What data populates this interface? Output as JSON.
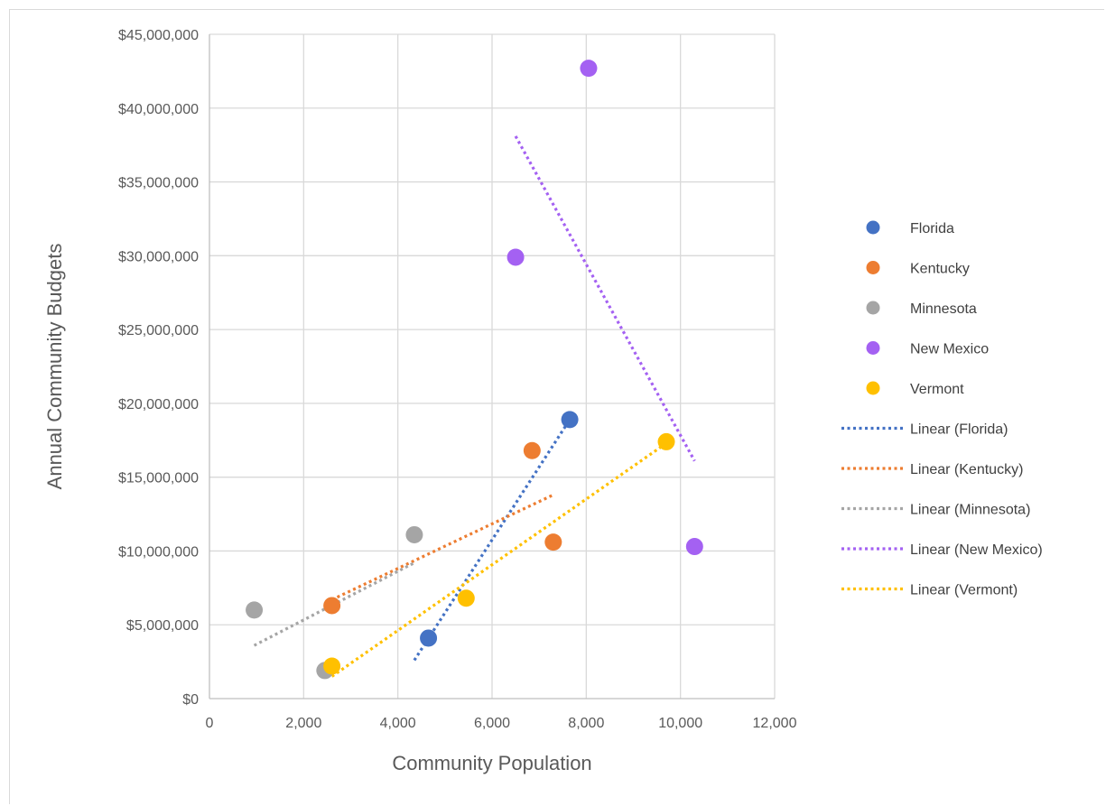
{
  "chart_data": {
    "type": "scatter",
    "title": "",
    "xlabel": "Community Population",
    "ylabel": "Annual Community Budgets",
    "xlim": [
      0,
      12000
    ],
    "ylim": [
      0,
      45000000
    ],
    "xticks": [
      0,
      2000,
      4000,
      6000,
      8000,
      10000,
      12000
    ],
    "xtick_labels": [
      "0",
      "2,000",
      "4,000",
      "6,000",
      "8,000",
      "10,000",
      "12,000"
    ],
    "yticks": [
      0,
      5000000,
      10000000,
      15000000,
      20000000,
      25000000,
      30000000,
      35000000,
      40000000,
      45000000
    ],
    "ytick_labels": [
      "$0",
      "$5,000,000",
      "$10,000,000",
      "$15,000,000",
      "$20,000,000",
      "$25,000,000",
      "$30,000,000",
      "$35,000,000",
      "$40,000,000",
      "$45,000,000"
    ],
    "grid": true,
    "legend_position": "right",
    "series": [
      {
        "name": "Florida",
        "color": "#4472c4",
        "points": [
          [
            4650,
            4100000
          ],
          [
            7650,
            18900000
          ]
        ],
        "trendline": {
          "name": "Linear (Florida)",
          "x": [
            4350,
            7650
          ],
          "y": [
            2600000,
            18900000
          ]
        }
      },
      {
        "name": "Kentucky",
        "color": "#ed7d31",
        "points": [
          [
            2600,
            6300000
          ],
          [
            6850,
            16800000
          ],
          [
            7300,
            10600000
          ]
        ],
        "trendline": {
          "name": "Linear (Kentucky)",
          "x": [
            2600,
            7300
          ],
          "y": [
            6700000,
            13800000
          ]
        }
      },
      {
        "name": "Minnesota",
        "color": "#a5a5a5",
        "points": [
          [
            950,
            6000000
          ],
          [
            2450,
            1900000
          ],
          [
            4350,
            11100000
          ]
        ],
        "trendline": {
          "name": "Linear (Minnesota)",
          "x": [
            950,
            4350
          ],
          "y": [
            3600000,
            9200000
          ]
        }
      },
      {
        "name": "New Mexico",
        "color": "#a461f2",
        "points": [
          [
            6500,
            29900000
          ],
          [
            8050,
            42700000
          ],
          [
            10300,
            10300000
          ]
        ],
        "trendline": {
          "name": "Linear (New Mexico)",
          "x": [
            6500,
            10300
          ],
          "y": [
            38100000,
            16100000
          ]
        }
      },
      {
        "name": "Vermont",
        "color": "#ffc000",
        "points": [
          [
            2600,
            2200000
          ],
          [
            5450,
            6800000
          ],
          [
            9700,
            17400000
          ]
        ],
        "trendline": {
          "name": "Linear (Vermont)",
          "x": [
            2600,
            9700
          ],
          "y": [
            1500000,
            17300000
          ]
        }
      }
    ]
  }
}
